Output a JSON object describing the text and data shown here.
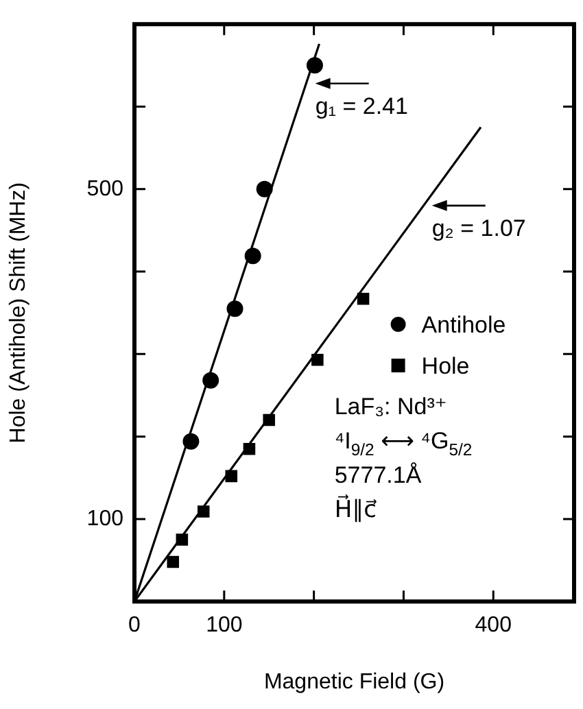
{
  "chart_data": {
    "type": "scatter",
    "xlabel": "Magnetic Field (G)",
    "ylabel": "Hole (Antihole) Shift (MHz)",
    "xlim": [
      0,
      490
    ],
    "xticks": [
      0,
      100,
      {
        "value": 200,
        "label": null
      },
      {
        "value": 300,
        "label": null
      },
      400
    ],
    "ylim": [
      0,
      700
    ],
    "yticks": [
      {
        "value": 0,
        "label": null
      },
      100,
      {
        "value": 200,
        "label": null
      },
      {
        "value": 300,
        "label": null
      },
      {
        "value": 400,
        "label": null
      },
      500,
      {
        "value": 600,
        "label": null
      }
    ],
    "grid": false,
    "legend": "right",
    "series": [
      {
        "name": "Antihole",
        "marker": "circle",
        "color": "#000000",
        "x": [
          63,
          85,
          112,
          132,
          145,
          201
        ],
        "values": [
          194,
          268,
          355,
          419,
          500,
          650
        ]
      },
      {
        "name": "Hole",
        "marker": "square",
        "color": "#000000",
        "x": [
          43,
          53,
          77,
          108,
          128,
          150,
          204,
          255
        ],
        "values": [
          48,
          75,
          109,
          152,
          185,
          220,
          293,
          367
        ]
      },
      {
        "type": "line",
        "marker": "none",
        "color": "#000000",
        "x": [
          0,
          206
        ],
        "values": [
          0,
          676
        ]
      },
      {
        "type": "line",
        "marker": "none",
        "color": "#000000",
        "x": [
          0,
          386
        ],
        "values": [
          0,
          575
        ]
      }
    ],
    "annotations": [
      {
        "text": "g₁ = 2.41",
        "x": 200,
        "y": 628
      },
      {
        "text": "g₂ = 1.07",
        "x": 330,
        "y": 480
      },
      "LaF₃: Nd³⁺",
      "⁴I$_{9/2}$ ⟷ ⁴G$_{5/2}$",
      "5777.1Å",
      "H⃗∥c⃗"
    ]
  }
}
